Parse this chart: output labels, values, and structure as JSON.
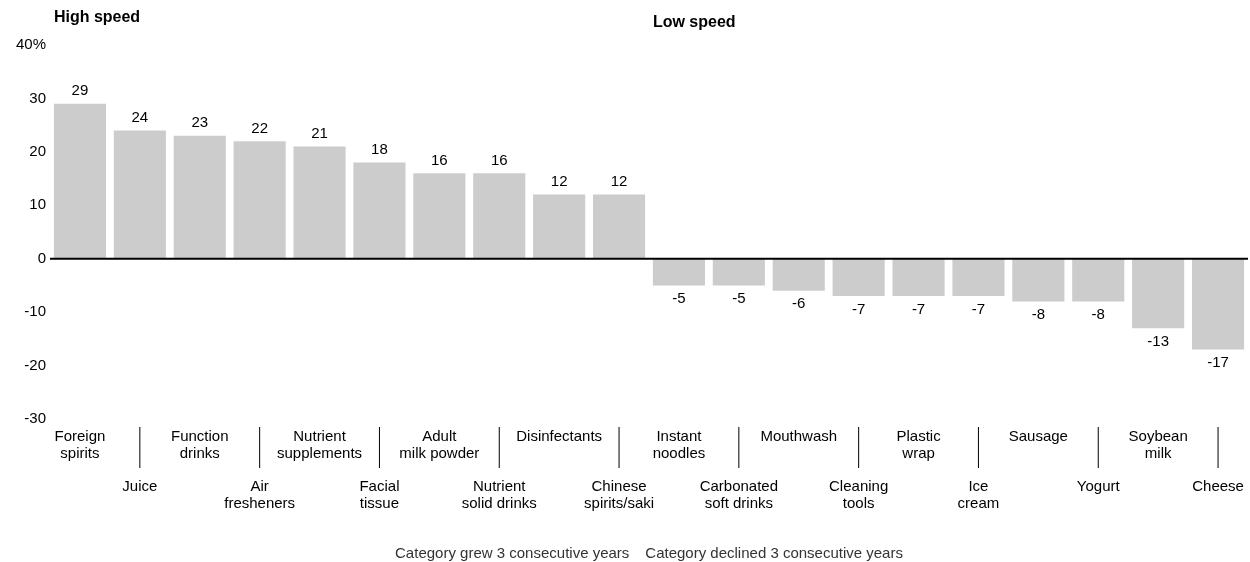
{
  "chart_data": {
    "type": "bar",
    "categories": [
      "Foreign spirits",
      "Juice",
      "Function drinks",
      "Air fresheners",
      "Nutrient supplements",
      "Facial tissue",
      "Adult milk powder",
      "Nutrient solid drinks",
      "Disinfectants",
      "Chinese spirits/saki",
      "Instant noodles",
      "Carbonated soft drinks",
      "Mouthwash",
      "Cleaning tools",
      "Plastic wrap",
      "Ice cream",
      "Sausage",
      "Yogurt",
      "Soybean milk",
      "Cheese"
    ],
    "values": [
      29,
      24,
      23,
      22,
      21,
      18,
      16,
      16,
      12,
      12,
      -5,
      -5,
      -6,
      -7,
      -7,
      -7,
      -8,
      -8,
      -13,
      -17
    ],
    "color": "#cccccc",
    "ylim": [
      -30,
      40
    ],
    "yticks": [
      {
        "value": 40,
        "label": "40%"
      },
      30,
      20,
      10,
      0,
      -10,
      -20,
      -30
    ],
    "legend": false,
    "data_labels": true,
    "annotations": [
      "High speed",
      "Low speed",
      "Category grew 3 consecutive years",
      "Category declined 3 consecutive years"
    ]
  }
}
